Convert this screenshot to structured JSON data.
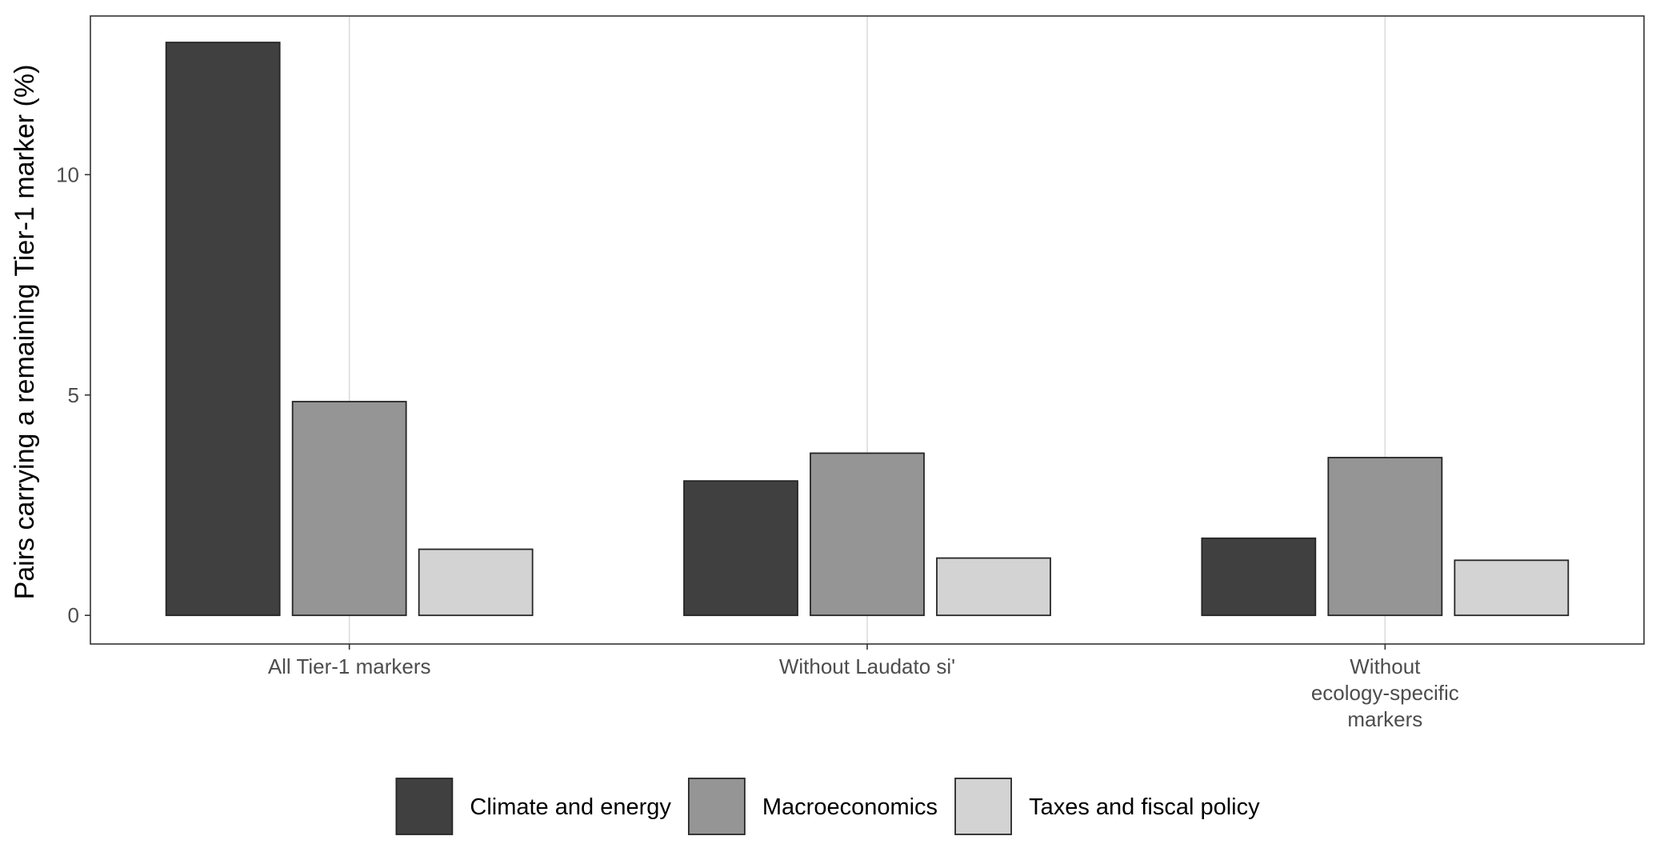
{
  "chart_data": {
    "type": "bar",
    "title": "",
    "xlabel": "",
    "ylabel": "Pairs carrying a remaining Tier-1 marker (%)",
    "categories": [
      [
        "All Tier-1 markers"
      ],
      [
        "Without Laudato si'"
      ],
      [
        "Without",
        "ecology-specific",
        "markers"
      ]
    ],
    "series": [
      {
        "name": "Climate and energy",
        "color": "#404040",
        "values": [
          13.0,
          3.05,
          1.75
        ]
      },
      {
        "name": "Macroeconomics",
        "color": "#959595",
        "values": [
          4.85,
          3.68,
          3.58
        ]
      },
      {
        "name": "Taxes and fiscal policy",
        "color": "#d3d3d3",
        "values": [
          1.5,
          1.3,
          1.25
        ]
      }
    ],
    "ylim": [
      -0.65,
      13.6
    ],
    "yticks": [
      0,
      5,
      10
    ],
    "grid": true,
    "legend_position": "bottom"
  }
}
